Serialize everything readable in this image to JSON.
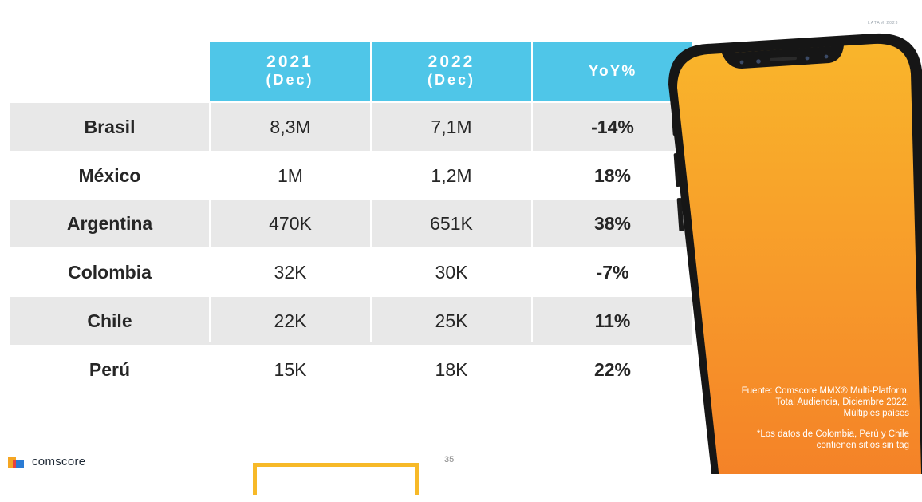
{
  "corner_mark": "LATAM 2023",
  "table": {
    "headers": [
      {
        "year": "2021",
        "sub": "(Dec)"
      },
      {
        "year": "2022",
        "sub": "(Dec)"
      },
      {
        "label": "YoY%"
      }
    ],
    "rows": [
      {
        "country": "Brasil",
        "v2021": "8,3M",
        "v2022": "7,1M",
        "yoy": "-14%"
      },
      {
        "country": "México",
        "v2021": "1M",
        "v2022": "1,2M",
        "yoy": "18%"
      },
      {
        "country": "Argentina",
        "v2021": "470K",
        "v2022": "651K",
        "yoy": "38%"
      },
      {
        "country": "Colombia",
        "v2021": "32K",
        "v2022": "30K",
        "yoy": "-7%"
      },
      {
        "country": "Chile",
        "v2021": "22K",
        "v2022": "25K",
        "yoy": "11%"
      },
      {
        "country": "Perú",
        "v2021": "15K",
        "v2022": "18K",
        "yoy": "22%"
      }
    ]
  },
  "source": {
    "line1": "Fuente: Comscore MMX® Multi-Platform,",
    "line2": "Total Audiencia, Diciembre 2022,",
    "line3": "Múltiples países"
  },
  "note": {
    "line1": "*Los datos de Colombia, Perú y Chile",
    "line2": "contienen sitios sin tag"
  },
  "footer": {
    "brand": "comscore",
    "page_number": "35"
  },
  "colors": {
    "header_bg": "#4fc6e8",
    "row_shade": "#e8e8e8",
    "phone_top": "#f9b52b",
    "phone_bottom": "#f47f27",
    "accent_yellow": "#f7b928"
  },
  "icons": {
    "phone": "smartphone-illustration-icon",
    "brand": "comscore-logo-icon"
  }
}
